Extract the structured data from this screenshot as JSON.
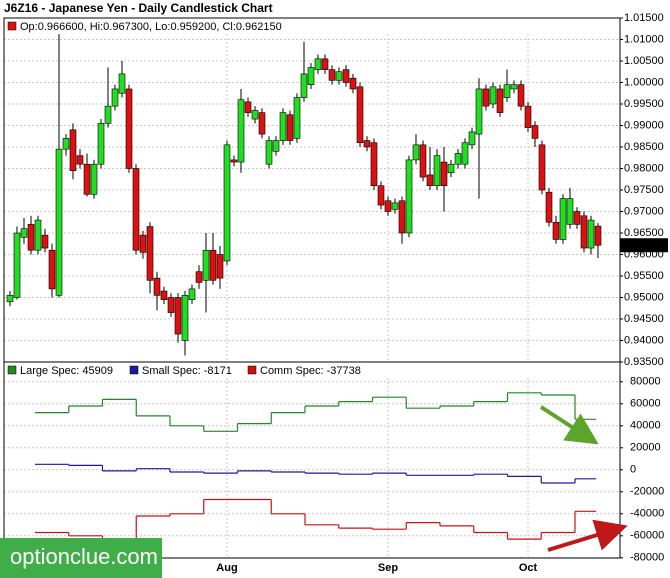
{
  "title": "J6Z16 - Japanese Yen - Daily Candlestick Chart",
  "watermark": "optionclue.com",
  "chart_data": [
    {
      "type": "candlestick",
      "ohlc_label": "Op:0.966600, Hi:0.967300, Lo:0.959200, Cl:0.962150",
      "up_color": "#22dd22",
      "down_color": "#dd1111",
      "grid": true,
      "categories": [
        null,
        null,
        null,
        null,
        null,
        null,
        null,
        null,
        null,
        null,
        null,
        null,
        null,
        null,
        null,
        null,
        null,
        null,
        null,
        null,
        null,
        null,
        null,
        null,
        null,
        null,
        null,
        null,
        null,
        null,
        null,
        "Aug",
        null,
        null,
        null,
        null,
        null,
        null,
        null,
        null,
        null,
        null,
        null,
        null,
        null,
        null,
        null,
        null,
        null,
        null,
        null,
        null,
        null,
        null,
        "Sep",
        null,
        null,
        null,
        null,
        null,
        null,
        null,
        null,
        null,
        null,
        null,
        null,
        null,
        null,
        null,
        null,
        null,
        null,
        null,
        "Oct",
        null,
        null,
        null,
        null,
        null,
        null,
        null,
        null,
        null,
        null
      ],
      "open": [
        0.949,
        0.95,
        0.964,
        0.967,
        0.961,
        0.9645,
        0.961,
        0.9505,
        0.9845,
        0.989,
        0.983,
        0.981,
        0.974,
        0.981,
        0.9905,
        0.9945,
        0.9975,
        0.9985,
        0.98,
        0.9645,
        0.9665,
        0.9545,
        0.9515,
        0.95,
        0.95,
        0.94,
        0.9495,
        0.956,
        0.954,
        0.961,
        0.96,
        0.9585,
        0.982,
        0.9815,
        0.9955,
        0.9915,
        0.993,
        0.981,
        0.984,
        0.9865,
        0.9925,
        0.987,
        0.9965,
        0.9995,
        1.003,
        1.0055,
        1.003,
        1.0005,
        1.003,
        1.001,
        0.999,
        0.9865,
        0.986,
        0.976,
        0.9725,
        0.9705,
        0.9725,
        0.965,
        0.982,
        0.9855,
        0.9785,
        0.976,
        0.9815,
        0.979,
        0.981,
        0.981,
        0.9855,
        0.988,
        0.9985,
        0.995,
        0.9985,
        0.9965,
        0.9985,
        0.9995,
        0.9945,
        0.99,
        0.9855,
        0.9745,
        0.9675,
        0.9635,
        0.967,
        0.97,
        0.969,
        0.9615,
        0.9666
      ],
      "high": [
        0.9515,
        0.9665,
        0.9685,
        0.969,
        0.969,
        0.966,
        0.9625,
        1.0115,
        0.988,
        0.9905,
        0.9845,
        0.9835,
        0.982,
        0.9915,
        1.0035,
        0.9995,
        1.005,
        0.9995,
        0.981,
        0.9655,
        0.9675,
        0.956,
        0.9525,
        0.951,
        0.951,
        0.9515,
        0.953,
        0.9575,
        0.965,
        0.965,
        0.962,
        0.9865,
        0.983,
        0.9985,
        0.9965,
        0.9945,
        0.994,
        0.9875,
        0.9875,
        0.994,
        0.9935,
        0.9975,
        1.0095,
        1.0045,
        1.0065,
        1.0065,
        1.004,
        1.0035,
        1.004,
        1.002,
        1.0,
        0.9875,
        0.987,
        0.977,
        0.9735,
        0.973,
        0.9735,
        0.983,
        0.988,
        0.9865,
        0.985,
        0.9845,
        0.985,
        0.982,
        0.9845,
        0.987,
        0.9895,
        1.001,
        0.9995,
        1.0,
        0.9995,
        1.003,
        1.0005,
        1.0005,
        0.9955,
        0.991,
        0.9865,
        0.9755,
        0.969,
        0.974,
        0.9755,
        0.971,
        0.97,
        0.969,
        0.9673
      ],
      "low": [
        0.948,
        0.9495,
        0.9625,
        0.96,
        0.96,
        0.9605,
        0.95,
        0.95,
        0.983,
        0.9775,
        0.98,
        0.9735,
        0.973,
        0.98,
        0.9895,
        0.9935,
        0.9965,
        0.979,
        0.96,
        0.959,
        0.951,
        0.947,
        0.9485,
        0.9455,
        0.9395,
        0.9365,
        0.9485,
        0.952,
        0.9465,
        0.953,
        0.952,
        0.9575,
        0.9805,
        0.979,
        0.992,
        0.9905,
        0.987,
        0.98,
        0.983,
        0.9855,
        0.9855,
        0.986,
        0.9955,
        0.9985,
        1.002,
        1.002,
        0.9995,
        0.9995,
        0.999,
        0.9975,
        0.985,
        0.984,
        0.975,
        0.9705,
        0.969,
        0.9695,
        0.9625,
        0.964,
        0.981,
        0.977,
        0.975,
        0.975,
        0.97,
        0.978,
        0.98,
        0.98,
        0.9845,
        0.973,
        0.9935,
        0.994,
        0.992,
        0.9955,
        0.9975,
        0.9935,
        0.9885,
        0.985,
        0.974,
        0.9665,
        0.9625,
        0.9625,
        0.966,
        0.966,
        0.9605,
        0.96,
        0.9592
      ],
      "close": [
        0.9505,
        0.965,
        0.966,
        0.961,
        0.968,
        0.9615,
        0.952,
        0.9845,
        0.987,
        0.9795,
        0.981,
        0.974,
        0.981,
        0.9905,
        0.9945,
        0.9985,
        1.002,
        0.98,
        0.961,
        0.9605,
        0.954,
        0.9505,
        0.9495,
        0.9465,
        0.9415,
        0.9505,
        0.952,
        0.9535,
        0.961,
        0.954,
        0.9545,
        0.9855,
        0.9815,
        0.996,
        0.993,
        0.9935,
        0.988,
        0.9865,
        0.9865,
        0.993,
        0.9865,
        0.9965,
        1.002,
        1.0035,
        1.0055,
        1.003,
        1.0005,
        1.0025,
        1.0,
        0.9985,
        0.986,
        0.985,
        0.976,
        0.9715,
        0.97,
        0.972,
        0.965,
        0.982,
        0.9855,
        0.978,
        0.976,
        0.983,
        0.976,
        0.981,
        0.9835,
        0.986,
        0.9885,
        0.9985,
        0.9945,
        0.999,
        0.993,
        0.9995,
        0.9995,
        0.9945,
        0.9895,
        0.987,
        0.975,
        0.9675,
        0.9635,
        0.973,
        0.973,
        0.967,
        0.9615,
        0.968,
        0.96215
      ],
      "ylim": [
        0.935,
        1.015
      ],
      "yticks": [
        {
          "value": 1.015,
          "label": "1.01500"
        },
        {
          "value": 1.01,
          "label": "1.01000"
        },
        {
          "value": 1.005,
          "label": "1.00500"
        },
        {
          "value": 1.0,
          "label": "1.00000"
        },
        {
          "value": 0.995,
          "label": "0.99500"
        },
        {
          "value": 0.99,
          "label": "0.99000"
        },
        {
          "value": 0.985,
          "label": "0.98500"
        },
        {
          "value": 0.98,
          "label": "0.98000"
        },
        {
          "value": 0.975,
          "label": "0.97500"
        },
        {
          "value": 0.97,
          "label": "0.97000"
        },
        {
          "value": 0.965,
          "label": "0.96500"
        },
        {
          "value": 0.96,
          "label": "0.96000"
        },
        {
          "value": 0.955,
          "label": "0.95500"
        },
        {
          "value": 0.95,
          "label": "0.95000"
        },
        {
          "value": 0.945,
          "label": "0.94500"
        },
        {
          "value": 0.94,
          "label": "0.94000"
        },
        {
          "value": 0.935,
          "label": "0.93500"
        }
      ]
    },
    {
      "type": "step",
      "grid": true,
      "series": [
        {
          "name": "Large Spec: 45909",
          "color": "#228822",
          "values": [
            52000,
            58000,
            64000,
            49000,
            40000,
            35000,
            42000,
            52000,
            58000,
            62000,
            66000,
            56000,
            58000,
            62000,
            70000,
            68000,
            45909
          ]
        },
        {
          "name": "Small Spec: -8171",
          "color": "#1a1aa0",
          "values": [
            5000,
            4000,
            -1000,
            1000,
            -2000,
            -3000,
            -1000,
            -2000,
            -3000,
            -4000,
            -3000,
            -5000,
            -5000,
            -4000,
            -6000,
            -12000,
            -8171
          ]
        },
        {
          "name": "Comm Spec: -37738",
          "color": "#cc1111",
          "values": [
            -57000,
            -60000,
            -70000,
            -42000,
            -40000,
            -27000,
            -27000,
            -40000,
            -50000,
            -53000,
            -54000,
            -48000,
            -51000,
            -57000,
            -63000,
            -57000,
            -37738
          ]
        }
      ],
      "ylim": [
        -82000,
        98000
      ],
      "yticks": [
        80000,
        60000,
        40000,
        20000,
        0,
        -20000,
        -40000,
        -60000,
        -80000
      ]
    }
  ]
}
